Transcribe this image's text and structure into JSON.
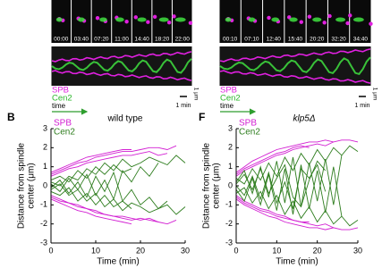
{
  "panel_A": {
    "timestamps": [
      "00:00",
      "03:40",
      "07:20",
      "11:00",
      "14:40",
      "18:20",
      "22:00"
    ],
    "legend": [
      "SPB",
      "Cen2"
    ],
    "time_label": "time",
    "scale_time": "1 min",
    "scale_space": "1 μm"
  },
  "panel_E": {
    "timestamps": [
      "00:10",
      "07:10",
      "12:40",
      "15:40",
      "20:20",
      "32:20",
      "34:40"
    ],
    "legend": [
      "SPB",
      "Cen2"
    ],
    "time_label": "time",
    "scale_time": "1 min",
    "scale_space": "1 μm"
  },
  "chart_data": [
    {
      "type": "line",
      "panel": "B",
      "title": "wild type",
      "xlabel": "Time (min)",
      "ylabel": [
        "Distance from spindle",
        "center (μm)"
      ],
      "xlim": [
        0,
        30
      ],
      "xticks": [
        0,
        10,
        20,
        30
      ],
      "ylim": [
        -3,
        3
      ],
      "yticks": [
        -3,
        -2,
        -1,
        0,
        1,
        2,
        3
      ],
      "x": [
        0,
        2,
        4,
        6,
        8,
        10,
        12,
        14,
        16,
        18,
        20,
        22,
        24,
        26,
        28,
        30
      ],
      "series": [
        {
          "name": "SPB",
          "color": "#d21ed2",
          "traces": [
            [
              0.7,
              0.9,
              1.1,
              1.3,
              1.5,
              1.6,
              1.7,
              1.8,
              1.9,
              1.9,
              null,
              null,
              null,
              null,
              null,
              null
            ],
            [
              0.5,
              0.7,
              0.9,
              1.0,
              1.2,
              1.3,
              1.4,
              1.5,
              1.6,
              1.6,
              1.7,
              1.8,
              1.6,
              1.7,
              null,
              null
            ],
            [
              0.6,
              0.8,
              1.0,
              1.2,
              1.3,
              1.5,
              1.6,
              1.7,
              1.8,
              1.8,
              1.9,
              2.0,
              2.0,
              1.9,
              2.1,
              null
            ],
            [
              -0.7,
              -0.9,
              -1.1,
              -1.3,
              -1.4,
              -1.6,
              -1.7,
              -1.8,
              -1.9,
              -2.0,
              null,
              null,
              null,
              null,
              null,
              null
            ],
            [
              -0.5,
              -0.7,
              -0.9,
              -1.1,
              -1.2,
              -1.4,
              -1.5,
              -1.6,
              -1.6,
              -1.7,
              -1.8,
              -1.7,
              -1.9,
              null,
              null,
              null
            ],
            [
              -0.6,
              -0.8,
              -0.9,
              -1.0,
              -1.2,
              -1.3,
              -1.5,
              -1.6,
              -1.7,
              -1.8,
              -1.7,
              -1.8,
              -1.9,
              -2.0,
              -1.8,
              null
            ]
          ]
        },
        {
          "name": "Cen2",
          "color": "#2e7d1e",
          "traces": [
            [
              0.3,
              0.5,
              0.2,
              0.8,
              0.4,
              1.0,
              0.6,
              1.1,
              0.7,
              0.9,
              null,
              null,
              null,
              null,
              null,
              null
            ],
            [
              -0.3,
              -0.5,
              -0.1,
              -0.8,
              -0.4,
              -1.0,
              -0.5,
              -1.1,
              -0.8,
              -1.2,
              null,
              null,
              null,
              null,
              null,
              null
            ],
            [
              0.1,
              -0.3,
              0.4,
              -0.2,
              0.6,
              -0.5,
              0.3,
              -0.7,
              0.8,
              0.2,
              1.0,
              0.5,
              1.2,
              null,
              null,
              null
            ],
            [
              -0.1,
              0.3,
              -0.4,
              0.2,
              -0.6,
              0.5,
              -0.3,
              0.7,
              -0.8,
              -0.2,
              -1.0,
              -0.6,
              -1.2,
              -0.8,
              null,
              null
            ],
            [
              0.2,
              0.0,
              0.5,
              0.3,
              0.9,
              0.6,
              1.2,
              0.8,
              1.4,
              1.0,
              1.2,
              1.5,
              1.3,
              1.1,
              1.6,
              1.2
            ],
            [
              -0.2,
              0.1,
              -0.5,
              -0.2,
              -0.8,
              -0.4,
              -1.1,
              -0.7,
              -1.3,
              -0.9,
              -1.1,
              -1.4,
              -1.2,
              -1.0,
              -1.5,
              -1.1
            ]
          ]
        }
      ]
    },
    {
      "type": "line",
      "panel": "F",
      "title": "klp5Δ",
      "xlabel": "Time (min)",
      "ylabel": [
        "Distance from spindle",
        "center (μm)"
      ],
      "xlim": [
        0,
        30
      ],
      "xticks": [
        0,
        10,
        20,
        30
      ],
      "ylim": [
        -3,
        3
      ],
      "yticks": [
        -3,
        -2,
        -1,
        0,
        1,
        2,
        3
      ],
      "x": [
        0,
        2,
        4,
        6,
        8,
        10,
        12,
        14,
        16,
        18,
        20,
        22,
        24,
        26,
        28,
        30
      ],
      "series": [
        {
          "name": "SPB",
          "color": "#d21ed2",
          "traces": [
            [
              0.7,
              1.0,
              1.3,
              1.5,
              1.7,
              1.9,
              2.0,
              2.1,
              2.2,
              2.3,
              2.3,
              2.4,
              2.3,
              2.4,
              2.4,
              2.3
            ],
            [
              0.5,
              0.8,
              1.0,
              1.2,
              1.4,
              1.6,
              1.7,
              1.9,
              2.0,
              2.1,
              2.2,
              2.1,
              2.3,
              null,
              null,
              null
            ],
            [
              0.6,
              0.9,
              1.1,
              1.3,
              1.5,
              1.7,
              1.8,
              2.0,
              2.1,
              2.0,
              null,
              null,
              null,
              null,
              null,
              null
            ],
            [
              -0.7,
              -1.0,
              -1.2,
              -1.4,
              -1.6,
              -1.7,
              -1.9,
              -2.0,
              -2.1,
              -2.2,
              -2.2,
              -2.3,
              -2.2,
              -2.3,
              -2.3,
              -2.2
            ],
            [
              -0.5,
              -0.8,
              -1.0,
              -1.2,
              -1.3,
              -1.5,
              -1.6,
              -1.8,
              -1.9,
              -2.0,
              -2.1,
              -2.0,
              -2.2,
              null,
              null,
              null
            ],
            [
              -0.6,
              -0.9,
              -1.1,
              -1.3,
              -1.4,
              -1.6,
              -1.7,
              -1.8,
              -1.9,
              -1.9,
              null,
              null,
              null,
              null,
              null,
              null
            ]
          ]
        },
        {
          "name": "Cen2",
          "color": "#2e7d1e",
          "traces": [
            [
              0.2,
              0.8,
              -0.4,
              1.0,
              -0.6,
              1.3,
              -0.9,
              1.5,
              -1.1,
              1.2,
              -0.8,
              1.4,
              -1.0,
              1.6,
              null,
              null
            ],
            [
              -0.2,
              -0.8,
              0.4,
              -1.0,
              0.6,
              -1.3,
              0.9,
              -1.5,
              1.1,
              -1.2,
              0.8,
              -1.4,
              1.0,
              -1.6,
              null,
              null
            ],
            [
              0.4,
              0.1,
              0.9,
              0.3,
              1.2,
              0.5,
              1.5,
              0.8,
              1.7,
              1.1,
              1.9,
              1.3,
              2.0,
              1.6,
              2.1,
              1.8
            ],
            [
              -0.4,
              -0.1,
              -0.9,
              -0.3,
              -1.2,
              -0.5,
              -1.5,
              -0.8,
              -1.7,
              -1.1,
              -1.9,
              -1.3,
              -2.0,
              -1.6,
              -2.1,
              -1.8
            ],
            [
              0.0,
              -0.5,
              0.5,
              -0.7,
              0.7,
              -0.9,
              0.2,
              -1.2,
              0.9,
              0.4,
              1.1,
              -0.3,
              null,
              null,
              null,
              null
            ],
            [
              0.1,
              0.6,
              -0.2,
              0.9,
              -0.4,
              0.4,
              1.1,
              -0.6,
              -1.1,
              0.3,
              1.3,
              0.8,
              null,
              null,
              null,
              null
            ]
          ]
        }
      ]
    }
  ]
}
